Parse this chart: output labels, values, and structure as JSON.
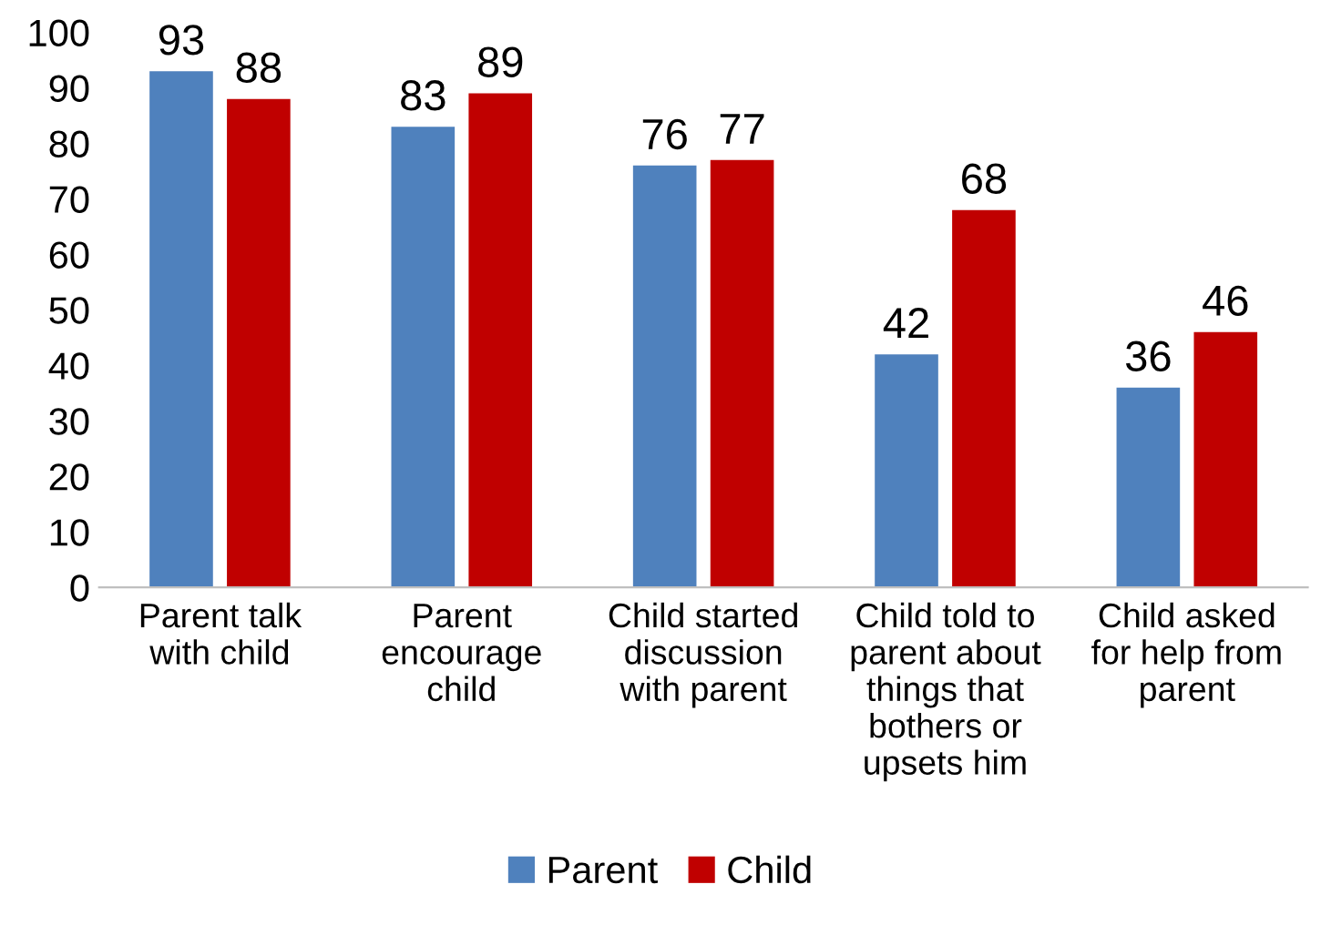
{
  "chart_data": {
    "type": "bar",
    "categories": [
      "Parent talk\nwith child",
      "Parent\nencourage\nchild",
      "Child started\ndiscussion\nwith parent",
      "Child told to\nparent about\nthings that\nbothers or\nupsets him",
      "Child asked\nfor help from\nparent"
    ],
    "series": [
      {
        "name": "Parent",
        "color": "#4f81bd",
        "values": [
          93,
          83,
          76,
          42,
          36
        ]
      },
      {
        "name": "Child",
        "color": "#c00000",
        "values": [
          88,
          89,
          77,
          68,
          46
        ]
      }
    ],
    "ylim": [
      0,
      100
    ],
    "yticks": [
      0,
      10,
      20,
      30,
      40,
      50,
      60,
      70,
      80,
      90,
      100
    ],
    "data_labels": true,
    "grid": false,
    "legend": "bottom"
  }
}
